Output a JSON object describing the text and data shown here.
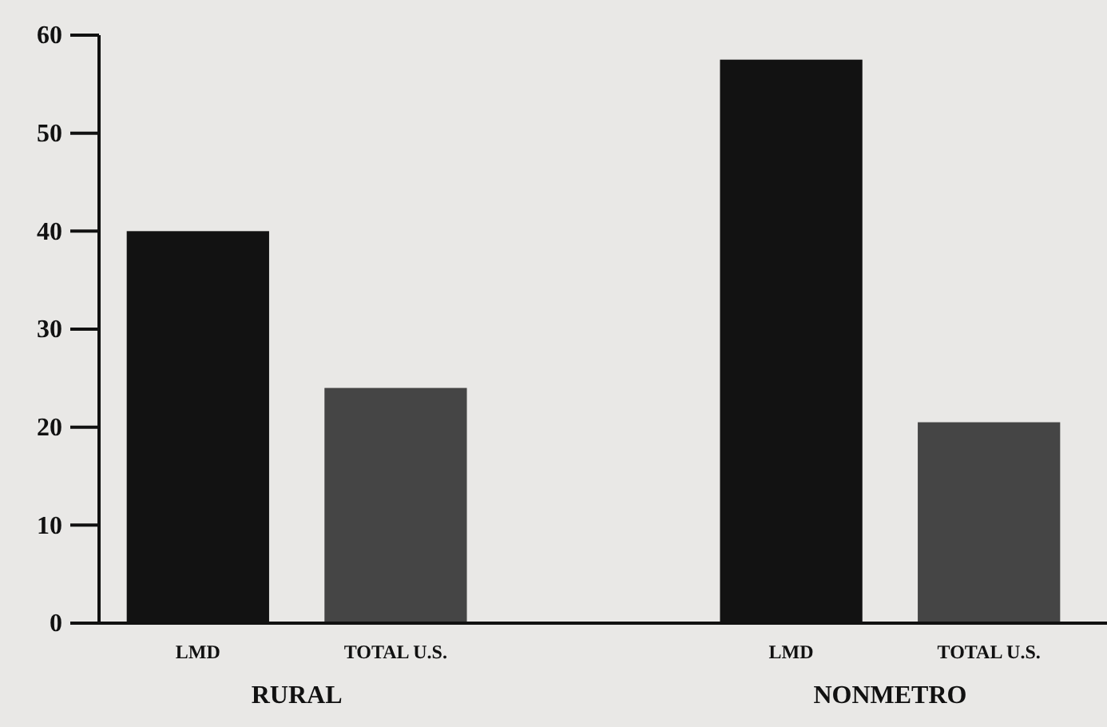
{
  "chart_data": {
    "type": "bar",
    "categories": [
      "LMD",
      "TOTAL U.S.",
      "LMD",
      "TOTAL U.S."
    ],
    "values": [
      40,
      24,
      57.5,
      20.5
    ],
    "colors": [
      "#121212",
      "#454545",
      "#121212",
      "#454545"
    ],
    "ylim": [
      0,
      60
    ],
    "yticks": [
      0,
      10,
      20,
      30,
      40,
      50,
      60
    ],
    "grid": false,
    "annotations": [
      "RURAL",
      "NONMETRO"
    ]
  }
}
